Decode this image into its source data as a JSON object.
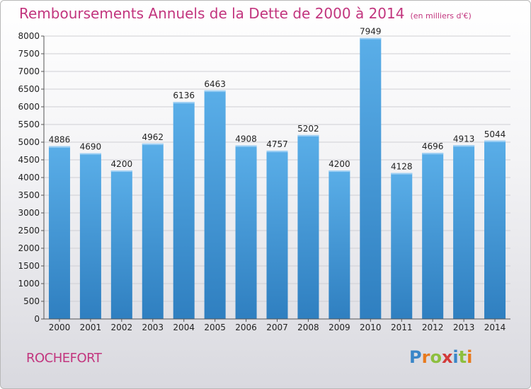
{
  "header": {
    "title": "Remboursements Annuels de la Dette de 2000 à 2014",
    "subtitle": "(en milliers d'€)"
  },
  "footer": {
    "city": "ROCHEFORT",
    "logo_text": "Proxiti",
    "logo_letters": [
      {
        "ch": "P",
        "color": "#3a86c8"
      },
      {
        "ch": "r",
        "color": "#e87a1e"
      },
      {
        "ch": "o",
        "color": "#8dbf3f"
      },
      {
        "ch": "x",
        "color": "#d23a3a"
      },
      {
        "ch": "i",
        "color": "#3a86c8"
      },
      {
        "ch": "t",
        "color": "#8dbf3f"
      },
      {
        "ch": "i",
        "color": "#e87a1e"
      }
    ]
  },
  "chart_data": {
    "type": "bar",
    "title": "Remboursements Annuels de la Dette de 2000 à 2014",
    "subtitle": "(en milliers d'€)",
    "categories": [
      "2000",
      "2001",
      "2002",
      "2003",
      "2004",
      "2005",
      "2006",
      "2007",
      "2008",
      "2009",
      "2010",
      "2011",
      "2012",
      "2013",
      "2014"
    ],
    "values": [
      4886,
      4690,
      4200,
      4962,
      6136,
      6463,
      4908,
      4757,
      5202,
      4200,
      7949,
      4128,
      4696,
      4913,
      5044
    ],
    "ylim": [
      0,
      8000
    ],
    "yticks": [
      0,
      500,
      1000,
      1500,
      2000,
      2500,
      3000,
      3500,
      4000,
      4500,
      5000,
      5500,
      6000,
      6500,
      7000,
      7500,
      8000
    ],
    "grid": true,
    "bar_color_top": "#5aaee8",
    "bar_color_bottom": "#2f7fc0"
  }
}
